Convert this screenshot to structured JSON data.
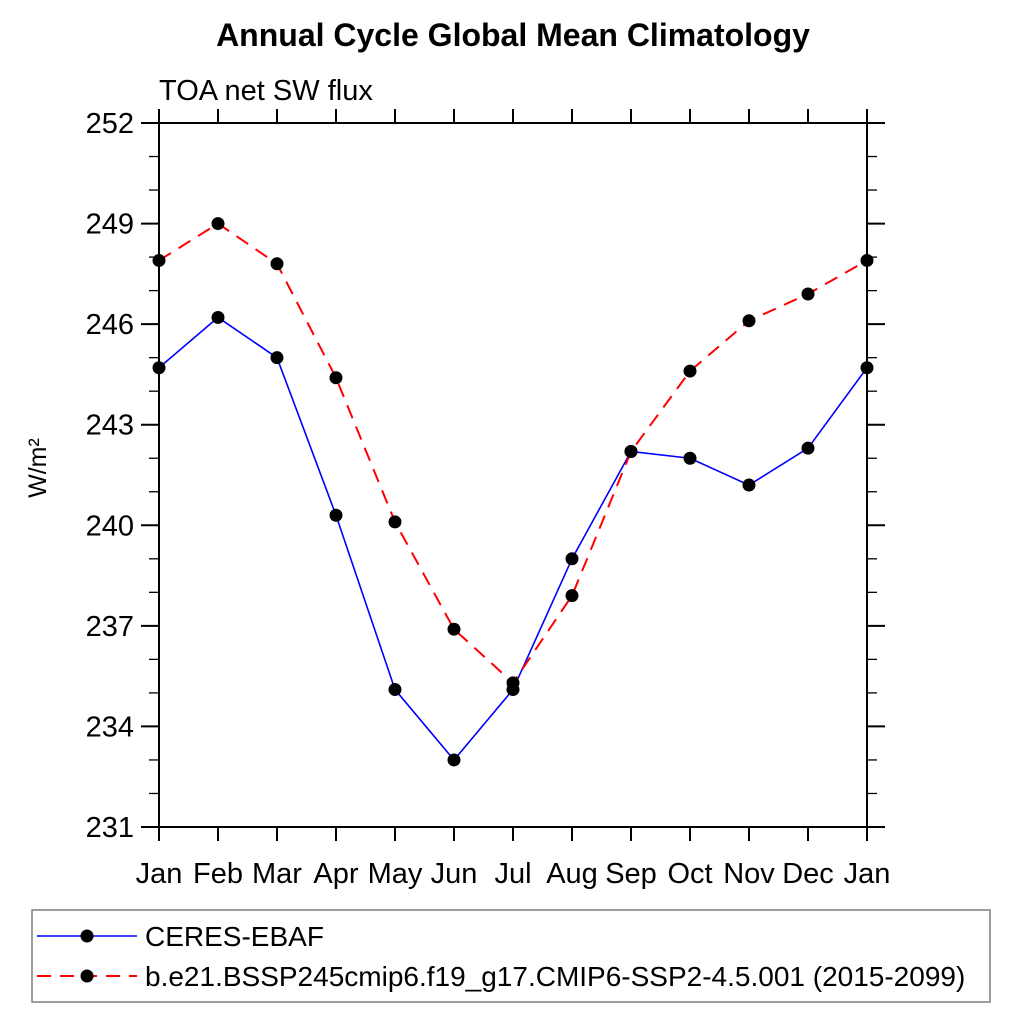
{
  "chart_data": {
    "type": "line",
    "title": "Annual Cycle Global Mean Climatology",
    "subtitle": "TOA net SW flux",
    "ylabel": "W/m²",
    "xlabel": "",
    "x_ticklabels": [
      "Jan",
      "Feb",
      "Mar",
      "Apr",
      "May",
      "Jun",
      "Jul",
      "Aug",
      "Sep",
      "Oct",
      "Nov",
      "Dec",
      "Jan"
    ],
    "ylim": [
      231,
      252
    ],
    "y_major_ticks": [
      231,
      234,
      237,
      240,
      243,
      246,
      249,
      252
    ],
    "y_major_step": 3,
    "y_minor_step": 1,
    "grid": false,
    "legend_position": "bottom",
    "axis_color": "#000000",
    "legend_border_color": "#7f7f7f",
    "marker": "filled-circle",
    "marker_color": "#000000",
    "series": [
      {
        "name": "CERES-EBAF",
        "color": "#0000ff",
        "line_style": "solid",
        "marker": "circle",
        "marker_color": "#000000",
        "values": [
          244.7,
          246.2,
          245.0,
          240.3,
          235.1,
          233.0,
          235.1,
          239.0,
          242.2,
          242.0,
          241.2,
          242.3,
          244.7
        ]
      },
      {
        "name": "b.e21.BSSP245cmip6.f19_g17.CMIP6-SSP2-4.5.001 (2015-2099)",
        "color": "#ff0000",
        "line_style": "dashed",
        "marker": "circle",
        "marker_color": "#000000",
        "values": [
          247.9,
          249.0,
          247.8,
          244.4,
          240.1,
          236.9,
          235.3,
          237.9,
          242.2,
          244.6,
          246.1,
          246.9,
          247.9
        ]
      }
    ]
  }
}
